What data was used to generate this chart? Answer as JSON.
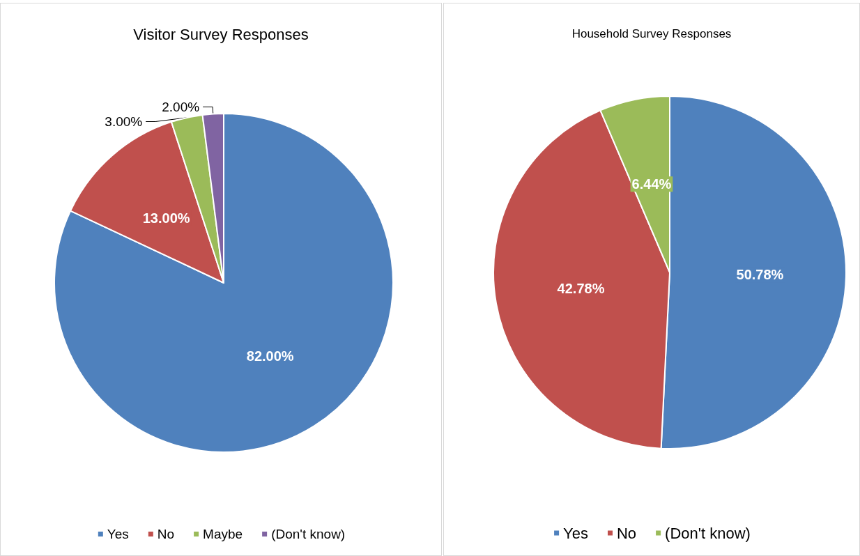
{
  "chart_data": [
    {
      "type": "pie",
      "title": "Visitor Survey Responses",
      "categories": [
        "Yes",
        "No",
        "Maybe",
        "(Don't know)"
      ],
      "values": [
        82,
        13,
        3,
        2
      ],
      "colors": [
        "#4f81bd",
        "#c0504d",
        "#9bbb59",
        "#8064a2"
      ],
      "value_labels": [
        "82.00%",
        "13.00%",
        "3.00%",
        "2.00%"
      ],
      "legend": "bottom"
    },
    {
      "type": "pie",
      "title": "Household Survey Responses",
      "categories": [
        "Yes",
        "No",
        "(Don't know)"
      ],
      "values": [
        50.78,
        42.78,
        6.44
      ],
      "colors": [
        "#4f81bd",
        "#c0504d",
        "#9bbb59"
      ],
      "value_labels": [
        "50.78%",
        "42.78%",
        "6.44%"
      ],
      "legend": "bottom"
    }
  ]
}
